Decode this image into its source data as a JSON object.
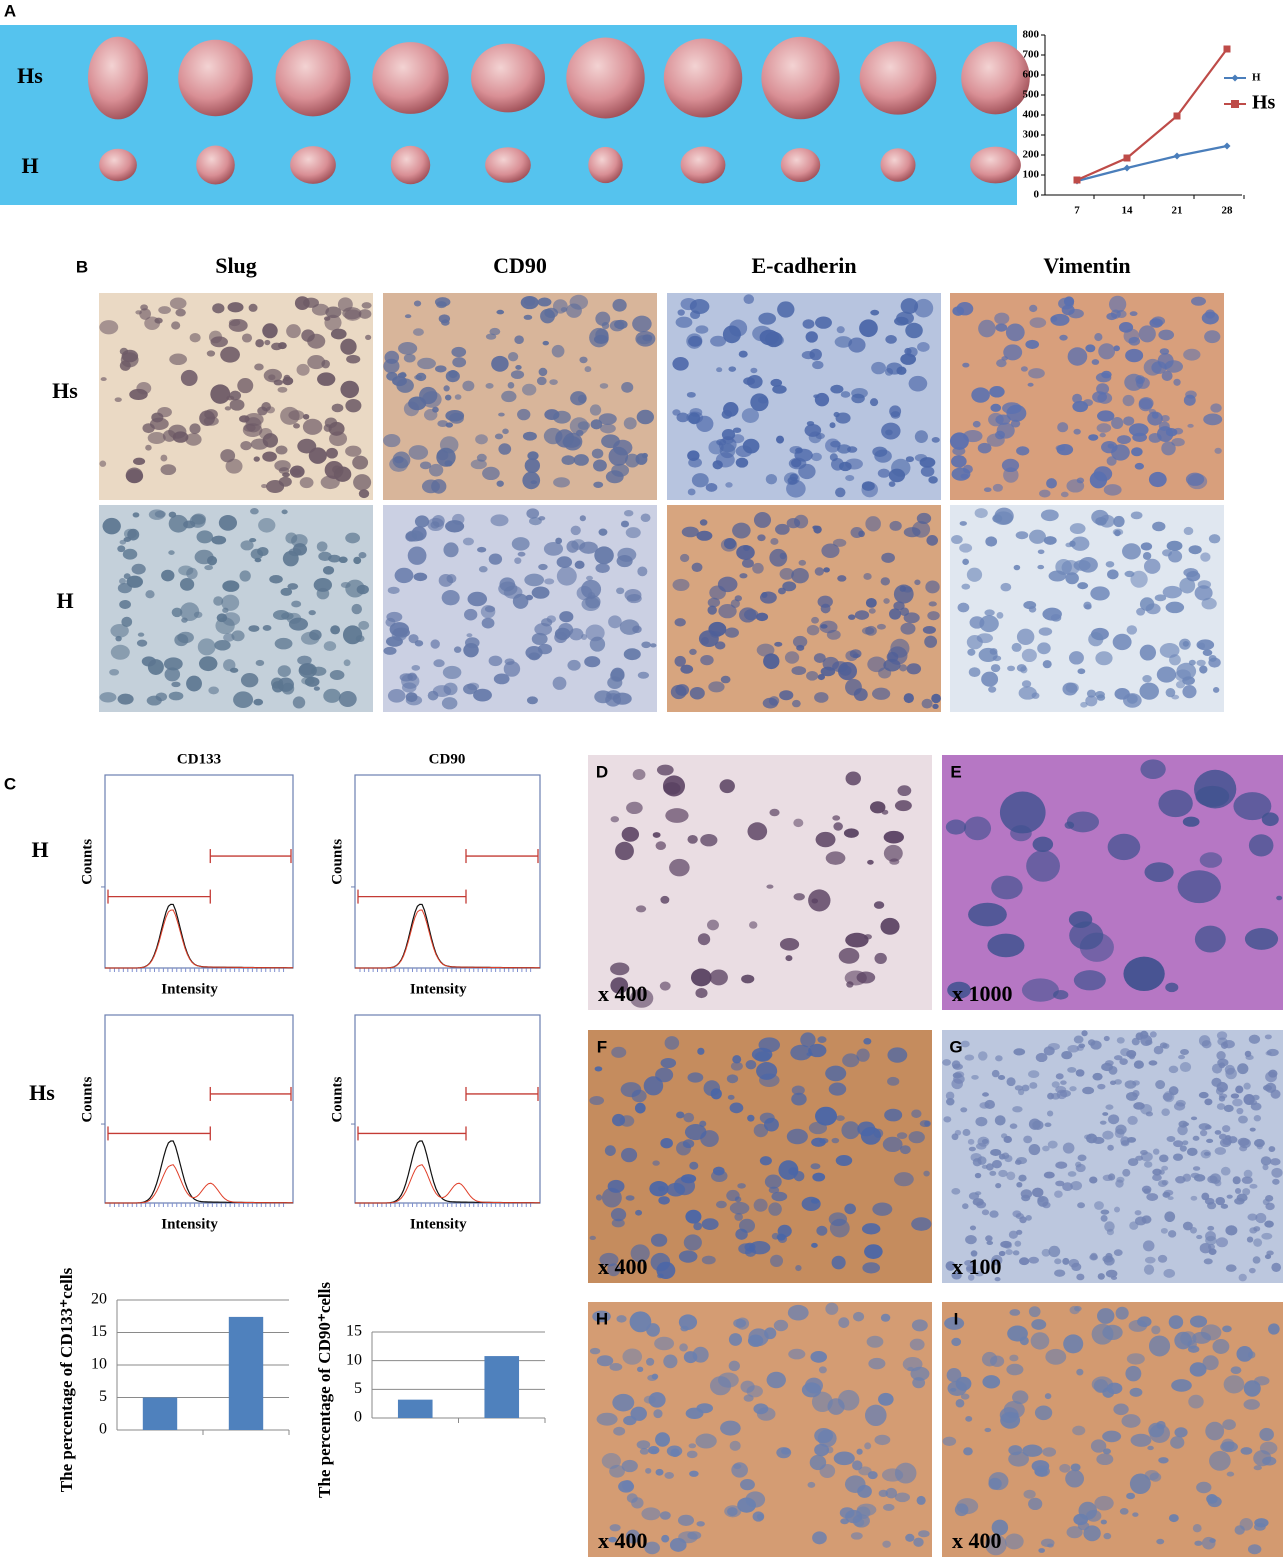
{
  "figure": {
    "panel_labels": [
      "A",
      "B",
      "C",
      "D",
      "E",
      "F",
      "G",
      "H",
      "I"
    ],
    "photo_rows": [
      "Hs",
      "H"
    ],
    "ihc_columns": [
      "Slug",
      "CD90",
      "E-cadherin",
      "Vimentin"
    ],
    "ihc_rows": [
      "Hs",
      "H"
    ],
    "flow": {
      "titles": [
        "CD133",
        "CD90"
      ],
      "rows": [
        "H",
        "Hs"
      ],
      "ylabel": "Counts",
      "xlabel": "Intensity"
    },
    "magnifications": [
      "x 400",
      "x 1000",
      "x 400",
      "x 100",
      "x 400",
      "x 400"
    ]
  },
  "chart_data": [
    {
      "type": "line",
      "categories": [
        "7",
        "14",
        "21",
        "28"
      ],
      "series": [
        {
          "name": "H",
          "color": "#4a7ebb",
          "values": [
            70,
            135,
            195,
            245
          ]
        },
        {
          "name": "Hs",
          "color": "#be4b48",
          "values": [
            75,
            185,
            395,
            730
          ]
        }
      ],
      "ylim": [
        0,
        800
      ],
      "yticks": [
        0,
        100,
        200,
        300,
        400,
        500,
        600,
        700,
        800
      ],
      "grid": false,
      "legend": "right"
    },
    {
      "type": "bar",
      "ylabel": "The percentage of CD133⁺cells",
      "categories": [
        null,
        null
      ],
      "values": [
        5,
        17.4
      ],
      "color": "#4f81bd",
      "ylim": [
        0,
        20
      ],
      "yticks": [
        0,
        5,
        10,
        15,
        20
      ],
      "grid": true
    },
    {
      "type": "bar",
      "ylabel": "The percentage of CD90⁺cells",
      "categories": [
        null,
        null
      ],
      "values": [
        3.2,
        10.8
      ],
      "color": "#4f81bd",
      "ylim": [
        0,
        15
      ],
      "yticks": [
        0,
        5,
        10,
        15
      ],
      "grid": true
    }
  ]
}
